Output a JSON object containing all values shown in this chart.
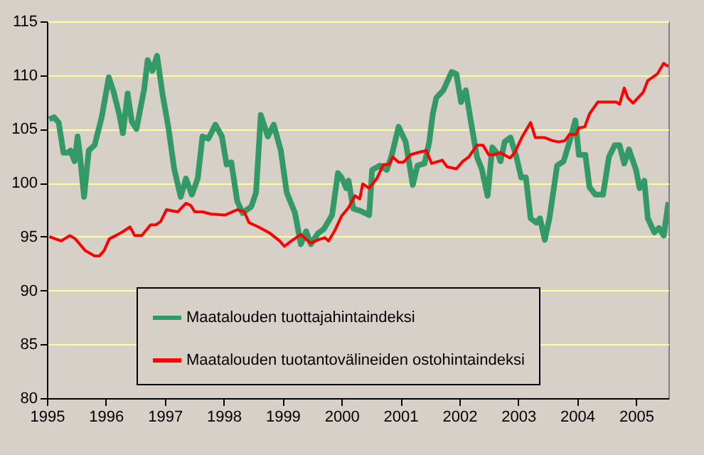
{
  "chart_data": {
    "type": "line",
    "series": [
      {
        "name": "Maatalouden tuottajahintaindeksi",
        "color": "#339966",
        "x": [
          1995.04,
          1995.12,
          1995.2,
          1995.28,
          1995.36,
          1995.4,
          1995.47,
          1995.52,
          1995.56,
          1995.63,
          1995.71,
          1995.81,
          1995.93,
          1996.05,
          1996.13,
          1996.23,
          1996.29,
          1996.37,
          1996.44,
          1996.52,
          1996.65,
          1996.71,
          1996.79,
          1996.87,
          1996.96,
          1997.06,
          1997.16,
          1997.27,
          1997.36,
          1997.46,
          1997.56,
          1997.64,
          1997.74,
          1997.86,
          1997.97,
          1998.05,
          1998.13,
          1998.23,
          1998.32,
          1998.47,
          1998.55,
          1998.63,
          1998.75,
          1998.85,
          1998.97,
          1999.07,
          1999.21,
          1999.31,
          1999.4,
          1999.48,
          1999.6,
          1999.7,
          1999.84,
          1999.94,
          2000.0,
          2000.08,
          2000.12,
          2000.2,
          2000.32,
          2000.47,
          2000.52,
          2000.65,
          2000.77,
          2000.85,
          2000.97,
          2001.09,
          2001.21,
          2001.29,
          2001.41,
          2001.49,
          2001.55,
          2001.61,
          2001.73,
          2001.87,
          2001.95,
          2002.03,
          2002.11,
          2002.19,
          2002.3,
          2002.38,
          2002.48,
          2002.56,
          2002.66,
          2002.7,
          2002.77,
          2002.87,
          2002.97,
          2003.05,
          2003.13,
          2003.21,
          2003.31,
          2003.37,
          2003.45,
          2003.53,
          2003.66,
          2003.77,
          2003.87,
          2003.97,
          2004.03,
          2004.14,
          2004.21,
          2004.31,
          2004.44,
          2004.54,
          2004.64,
          2004.72,
          2004.8,
          2004.88,
          2005.0,
          2005.06,
          2005.14,
          2005.2,
          2005.31,
          2005.39,
          2005.47,
          2005.55
        ],
        "values": [
          105.9,
          106.1,
          105.6,
          102.8,
          102.8,
          103,
          102,
          104.3,
          102.6,
          98.7,
          103,
          103.5,
          106.1,
          109.8,
          108.5,
          106.3,
          104.6,
          108.3,
          105.7,
          105,
          108.7,
          111.4,
          110.4,
          111.8,
          108.3,
          105.2,
          101.3,
          98.7,
          100.4,
          98.9,
          100.4,
          104.3,
          104.1,
          105.4,
          104.3,
          101.7,
          101.9,
          98.3,
          97.2,
          97.8,
          99.1,
          106.3,
          104.3,
          105.4,
          103,
          99.1,
          97.2,
          94.3,
          95.5,
          94.3,
          95.3,
          95.7,
          97,
          100.9,
          100.5,
          99.5,
          100.2,
          97.6,
          97.4,
          97,
          101.2,
          101.6,
          101.2,
          102.5,
          105.2,
          103.8,
          99.8,
          101.6,
          101.8,
          103.8,
          106.4,
          107.9,
          108.6,
          110.3,
          110.1,
          107.5,
          108.6,
          105.9,
          102.4,
          101.3,
          98.8,
          103.3,
          102.6,
          102,
          103.8,
          104.2,
          102.4,
          100.5,
          100.5,
          96.7,
          96.3,
          96.7,
          94.7,
          96.7,
          101.6,
          102,
          103.8,
          105.8,
          102.6,
          102.6,
          99.6,
          98.9,
          98.9,
          102.4,
          103.5,
          103.5,
          101.8,
          103.1,
          101.2,
          99.5,
          100.2,
          96.7,
          95.4,
          95.8,
          95.1,
          98.2
        ]
      },
      {
        "name": "Maatalouden tuotantovälineiden ostohintaindeksi",
        "color": "#ff0000",
        "x": [
          1995.04,
          1995.24,
          1995.39,
          1995.48,
          1995.65,
          1995.81,
          1995.89,
          1995.97,
          1996.06,
          1996.17,
          1996.27,
          1996.41,
          1996.49,
          1996.61,
          1996.76,
          1996.85,
          1996.93,
          1997.03,
          1997.22,
          1997.36,
          1997.44,
          1997.51,
          1997.64,
          1997.78,
          1998.02,
          1998.23,
          1998.35,
          1998.43,
          1998.59,
          1998.79,
          1998.95,
          1999.03,
          1999.15,
          1999.31,
          1999.39,
          1999.48,
          1999.6,
          1999.72,
          1999.78,
          1999.88,
          2000.0,
          2000.12,
          2000.23,
          2000.31,
          2000.36,
          2000.47,
          2000.6,
          2000.71,
          2000.81,
          2000.87,
          2000.97,
          2001.05,
          2001.17,
          2001.29,
          2001.44,
          2001.53,
          2001.71,
          2001.79,
          2001.95,
          2002.06,
          2002.16,
          2002.3,
          2002.4,
          2002.5,
          2002.58,
          2002.7,
          2002.86,
          2002.94,
          2003.06,
          2003.21,
          2003.29,
          2003.45,
          2003.59,
          2003.69,
          2003.79,
          2003.87,
          2003.98,
          2004.03,
          2004.13,
          2004.21,
          2004.35,
          2004.66,
          2004.72,
          2004.8,
          2004.86,
          2004.95,
          2005.12,
          2005.2,
          2005.36,
          2005.47,
          2005.55
        ],
        "values": [
          95,
          94.6,
          95.1,
          94.8,
          93.7,
          93.2,
          93.2,
          93.7,
          94.8,
          95.1,
          95.4,
          95.9,
          95.1,
          95.1,
          96.1,
          96.1,
          96.4,
          97.5,
          97.3,
          98.1,
          97.9,
          97.3,
          97.3,
          97.1,
          97,
          97.5,
          97.3,
          96.3,
          95.9,
          95.3,
          94.6,
          94.1,
          94.6,
          95.2,
          94.8,
          94.4,
          94.7,
          94.9,
          94.6,
          95.5,
          96.9,
          97.7,
          98.8,
          98.5,
          99.9,
          99.5,
          100.4,
          101.7,
          101.7,
          102.4,
          101.9,
          101.9,
          102.6,
          102.8,
          103,
          101.8,
          102.1,
          101.5,
          101.3,
          102,
          102.4,
          103.5,
          103.5,
          102.6,
          102.6,
          102.8,
          102.3,
          102.8,
          104.2,
          105.6,
          104.2,
          104.2,
          103.9,
          103.8,
          103.9,
          104.5,
          104.5,
          105.1,
          105.2,
          106.4,
          107.5,
          107.5,
          107.3,
          108.8,
          107.9,
          107.4,
          108.4,
          109.5,
          110.1,
          111.1,
          110.8
        ]
      }
    ],
    "xlim": [
      1995,
      2005.55
    ],
    "xticks": [
      1995,
      1996,
      1997,
      1998,
      1999,
      2000,
      2001,
      2002,
      2003,
      2004,
      2005
    ],
    "ylim": [
      80,
      115
    ],
    "yticks": [
      80,
      85,
      90,
      95,
      100,
      105,
      110,
      115
    ],
    "grid": "y",
    "legend": "bottom"
  }
}
